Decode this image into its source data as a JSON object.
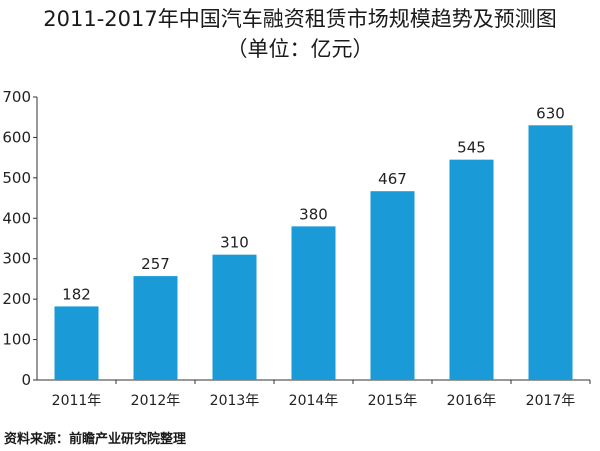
{
  "title": "2011-2017年中国汽车融资租赁市场规模趋势及预测图",
  "subtitle": "（单位：亿元）",
  "source": "资料来源：前瞻产业研究院整理",
  "chart_data": {
    "type": "bar",
    "categories": [
      "2011年",
      "2012年",
      "2013年",
      "2014年",
      "2015年",
      "2016年",
      "2017年"
    ],
    "values": [
      182,
      257,
      310,
      380,
      467,
      545,
      630
    ],
    "data_labels": [
      "182",
      "257",
      "310",
      "380",
      "467",
      "545",
      "630"
    ],
    "ylim": [
      0,
      700
    ],
    "yticks": [
      "0",
      "100",
      "200",
      "300",
      "400",
      "500",
      "600",
      "700"
    ],
    "ytick_values": [
      0,
      100,
      200,
      300,
      400,
      500,
      600,
      700
    ],
    "bar_color": "#1a9ad6",
    "grid": false,
    "legend": "none"
  }
}
